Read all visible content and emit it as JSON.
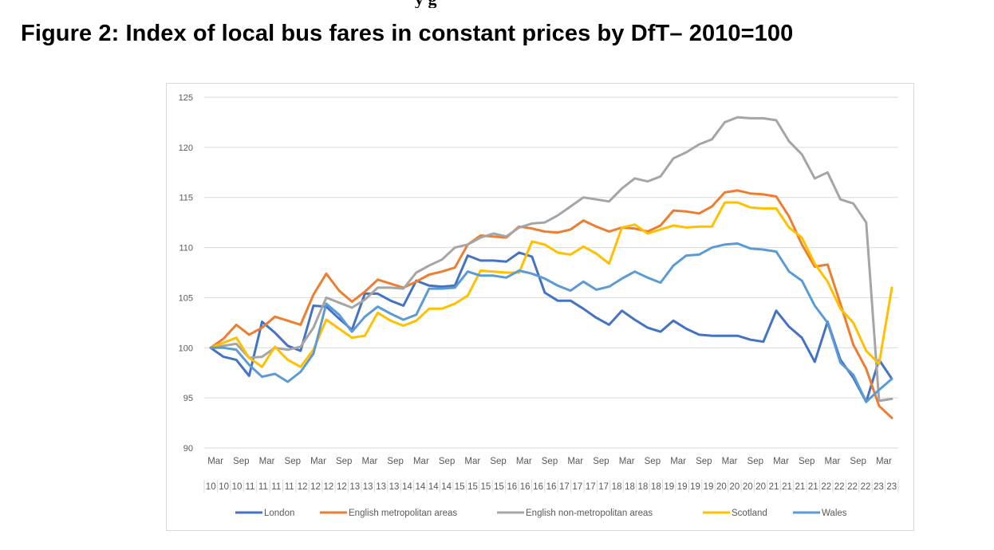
{
  "page": {
    "header_fragment": "y             g",
    "figure_title": "Figure 2: Index of local bus fares in constant prices by DfT– 2010=100"
  },
  "chart_data": {
    "type": "line",
    "title": "Figure 2: Index of local bus fares in constant prices by DfT– 2010=100",
    "xlabel": "",
    "ylabel": "",
    "ylim": [
      90,
      125
    ],
    "yticks": [
      90,
      95,
      100,
      105,
      110,
      115,
      120,
      125
    ],
    "grid": true,
    "legend_position": "bottom",
    "x_month_labels": [
      "Mar",
      "Sep",
      "Mar",
      "Sep",
      "Mar",
      "Sep",
      "Mar",
      "Sep",
      "Mar",
      "Sep",
      "Mar",
      "Sep",
      "Mar",
      "Sep",
      "Mar",
      "Sep",
      "Mar",
      "Sep",
      "Mar",
      "Sep",
      "Mar",
      "Sep",
      "Mar",
      "Sep",
      "Mar",
      "Sep",
      "Mar"
    ],
    "x_year_labels": [
      "10",
      "10",
      "10",
      "11",
      "11",
      "11",
      "11",
      "12",
      "12",
      "12",
      "12",
      "13",
      "13",
      "13",
      "13",
      "14",
      "14",
      "14",
      "14",
      "15",
      "15",
      "15",
      "15",
      "16",
      "16",
      "16",
      "16",
      "17",
      "17",
      "17",
      "17",
      "18",
      "18",
      "18",
      "18",
      "19",
      "19",
      "19",
      "19",
      "20",
      "20",
      "20",
      "20",
      "21",
      "21",
      "21",
      "21",
      "22",
      "22",
      "22",
      "22",
      "23",
      "23"
    ],
    "quarters": [
      "Mar 10",
      "Jun 10",
      "Sep 10",
      "Dec 10",
      "Mar 11",
      "Jun 11",
      "Sep 11",
      "Dec 11",
      "Mar 12",
      "Jun 12",
      "Sep 12",
      "Dec 12",
      "Mar 13",
      "Jun 13",
      "Sep 13",
      "Dec 13",
      "Mar 14",
      "Jun 14",
      "Sep 14",
      "Dec 14",
      "Mar 15",
      "Jun 15",
      "Sep 15",
      "Dec 15",
      "Mar 16",
      "Jun 16",
      "Sep 16",
      "Dec 16",
      "Mar 17",
      "Jun 17",
      "Sep 17",
      "Dec 17",
      "Mar 18",
      "Jun 18",
      "Sep 18",
      "Dec 18",
      "Mar 19",
      "Jun 19",
      "Sep 19",
      "Dec 19",
      "Mar 20",
      "Jun 20",
      "Sep 20",
      "Dec 20",
      "Mar 21",
      "Jun 21",
      "Sep 21",
      "Dec 21",
      "Mar 22",
      "Jun 22",
      "Sep 22",
      "Dec 22",
      "Mar 23",
      "Jun 23"
    ],
    "series": [
      {
        "name": "London",
        "color": "#4472C4",
        "values": [
          100,
          99.1,
          98.8,
          97.2,
          102.6,
          101.5,
          100.2,
          99.7,
          104.2,
          104.1,
          102.9,
          101.8,
          105.4,
          105.4,
          104.7,
          104.2,
          106.7,
          106.2,
          106.1,
          106.2,
          109.2,
          108.7,
          108.7,
          108.6,
          109.5,
          109.1,
          105.5,
          104.7,
          104.7,
          103.9,
          103.0,
          102.3,
          103.7,
          102.8,
          102.0,
          101.6,
          102.7,
          101.9,
          101.3,
          101.2,
          101.2,
          101.2,
          100.8,
          100.6,
          103.7,
          102.1,
          101.0,
          98.6,
          102.6,
          98.8,
          97.0,
          94.6,
          98.8,
          96.9
        ]
      },
      {
        "name": "English metropolitan areas",
        "color": "#ED7D31",
        "values": [
          100,
          100.9,
          102.3,
          101.3,
          102.0,
          103.1,
          102.7,
          102.3,
          105.3,
          107.4,
          105.7,
          104.6,
          105.6,
          106.8,
          106.4,
          106.0,
          106.6,
          107.3,
          107.6,
          108.0,
          110.3,
          111.2,
          111.1,
          111.0,
          112.1,
          111.9,
          111.6,
          111.5,
          111.8,
          112.7,
          112.1,
          111.6,
          112.0,
          111.9,
          111.6,
          112.2,
          113.7,
          113.6,
          113.4,
          114.1,
          115.5,
          115.7,
          115.4,
          115.3,
          115.1,
          113.1,
          110.3,
          108.1,
          108.3,
          104.4,
          100.3,
          97.9,
          94.2,
          93.0
        ]
      },
      {
        "name": "English non-metropolitan areas",
        "color": "#A5A5A5",
        "values": [
          100,
          100.2,
          100.4,
          99.0,
          99.1,
          100.0,
          99.8,
          100.1,
          102.0,
          105.0,
          104.5,
          104.0,
          104.8,
          106.0,
          106.0,
          105.9,
          107.5,
          108.2,
          108.8,
          110.0,
          110.3,
          111.0,
          111.4,
          111.1,
          112.0,
          112.4,
          112.5,
          113.2,
          114.1,
          115.0,
          114.8,
          114.6,
          115.9,
          116.9,
          116.6,
          117.1,
          118.9,
          119.5,
          120.3,
          120.8,
          122.5,
          123.0,
          122.9,
          122.9,
          122.7,
          120.6,
          119.3,
          116.9,
          117.5,
          114.8,
          114.4,
          112.5,
          94.7,
          94.9
        ]
      },
      {
        "name": "Scotland",
        "color": "#FFC000",
        "values": [
          100,
          100.5,
          101.0,
          99.0,
          98.1,
          100.1,
          98.8,
          98.1,
          99.8,
          102.8,
          101.9,
          101.0,
          101.2,
          103.5,
          102.7,
          102.2,
          102.7,
          103.9,
          103.9,
          104.4,
          105.2,
          107.7,
          107.6,
          107.5,
          107.5,
          110.6,
          110.3,
          109.5,
          109.3,
          110.1,
          109.4,
          108.4,
          112.0,
          112.3,
          111.4,
          111.8,
          112.2,
          112.0,
          112.1,
          112.1,
          114.5,
          114.5,
          114.0,
          113.9,
          113.9,
          112.0,
          111.0,
          108.4,
          106.6,
          103.9,
          102.5,
          99.7,
          98.4,
          106.0
        ]
      },
      {
        "name": "Wales",
        "color": "#5B9BD5",
        "values": [
          100,
          100.0,
          99.8,
          98.3,
          97.1,
          97.4,
          96.6,
          97.6,
          99.4,
          104.4,
          103.3,
          101.6,
          103.1,
          104.1,
          103.4,
          102.8,
          103.3,
          105.9,
          105.9,
          106.0,
          107.6,
          107.2,
          107.2,
          107.0,
          107.7,
          107.4,
          106.9,
          106.2,
          105.7,
          106.6,
          105.8,
          106.1,
          106.9,
          107.6,
          107.0,
          106.5,
          108.2,
          109.2,
          109.3,
          110.0,
          110.3,
          110.4,
          109.9,
          109.8,
          109.6,
          107.6,
          106.7,
          104.2,
          102.5,
          98.5,
          97.3,
          94.6,
          95.8,
          96.9
        ]
      }
    ]
  }
}
